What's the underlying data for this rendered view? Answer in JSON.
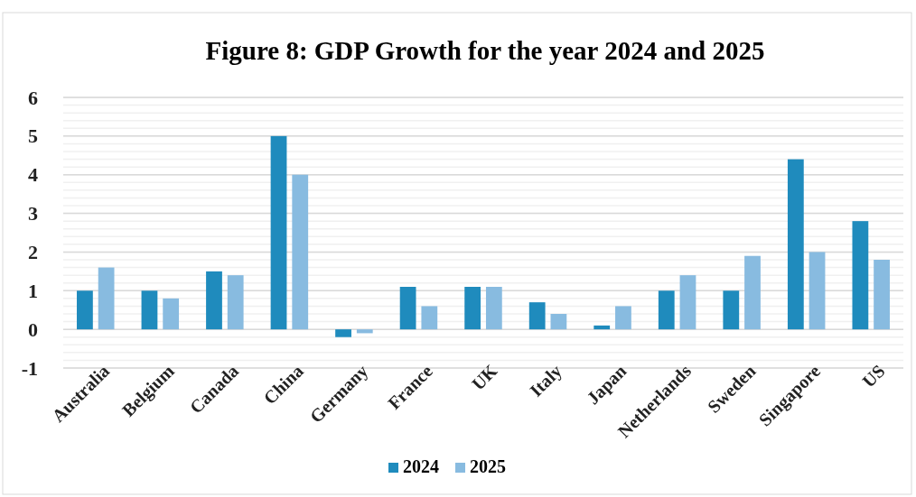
{
  "chart_data": {
    "type": "bar",
    "title": "Figure 8: GDP Growth for the year 2024 and 2025",
    "categories": [
      "Australia",
      "Belgium",
      "Canada",
      "China",
      "Germany",
      "France",
      "UK",
      "Italy",
      "Japan",
      "Netherlands",
      "Sweden",
      "Singapore",
      "US"
    ],
    "series": [
      {
        "name": "2024",
        "color": "#1f8bbd",
        "values": [
          1.0,
          1.0,
          1.5,
          5.0,
          -0.2,
          1.1,
          1.1,
          0.7,
          0.1,
          1.0,
          1.0,
          4.4,
          2.8
        ]
      },
      {
        "name": "2025",
        "color": "#88bbe0",
        "values": [
          1.6,
          0.8,
          1.4,
          4.0,
          -0.1,
          0.6,
          1.1,
          0.4,
          0.6,
          1.4,
          1.9,
          2.0,
          1.8
        ]
      }
    ],
    "ylim": [
      -1,
      6
    ],
    "yticks": [
      -1,
      0,
      1,
      2,
      3,
      4,
      5,
      6
    ],
    "grid": true,
    "legend": "bottom"
  }
}
